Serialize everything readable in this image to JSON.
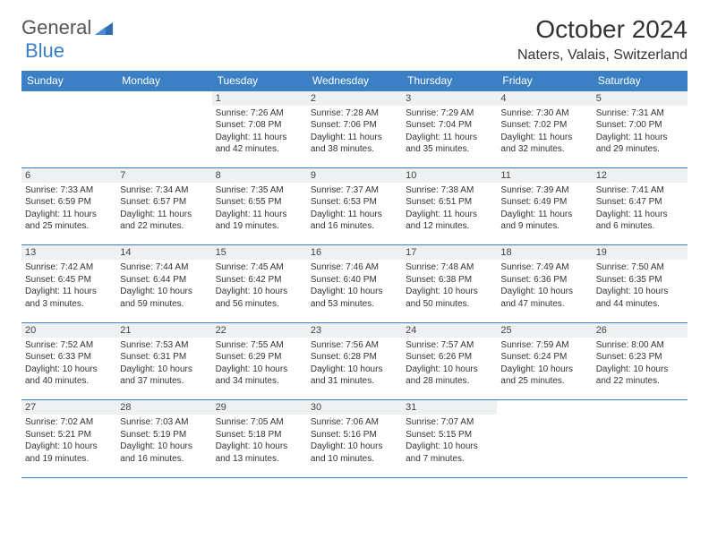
{
  "brand": {
    "part1": "General",
    "part2": "Blue"
  },
  "title": "October 2024",
  "location": "Naters, Valais, Switzerland",
  "header_bg": "#3b7fc4",
  "rule_color": "#3b7fc4",
  "daynum_bg": "#eef0f2",
  "text_color": "#333333",
  "weekdays": [
    "Sunday",
    "Monday",
    "Tuesday",
    "Wednesday",
    "Thursday",
    "Friday",
    "Saturday"
  ],
  "weeks": [
    [
      null,
      null,
      {
        "n": "1",
        "sr": "Sunrise: 7:26 AM",
        "ss": "Sunset: 7:08 PM",
        "dl1": "Daylight: 11 hours",
        "dl2": "and 42 minutes."
      },
      {
        "n": "2",
        "sr": "Sunrise: 7:28 AM",
        "ss": "Sunset: 7:06 PM",
        "dl1": "Daylight: 11 hours",
        "dl2": "and 38 minutes."
      },
      {
        "n": "3",
        "sr": "Sunrise: 7:29 AM",
        "ss": "Sunset: 7:04 PM",
        "dl1": "Daylight: 11 hours",
        "dl2": "and 35 minutes."
      },
      {
        "n": "4",
        "sr": "Sunrise: 7:30 AM",
        "ss": "Sunset: 7:02 PM",
        "dl1": "Daylight: 11 hours",
        "dl2": "and 32 minutes."
      },
      {
        "n": "5",
        "sr": "Sunrise: 7:31 AM",
        "ss": "Sunset: 7:00 PM",
        "dl1": "Daylight: 11 hours",
        "dl2": "and 29 minutes."
      }
    ],
    [
      {
        "n": "6",
        "sr": "Sunrise: 7:33 AM",
        "ss": "Sunset: 6:59 PM",
        "dl1": "Daylight: 11 hours",
        "dl2": "and 25 minutes."
      },
      {
        "n": "7",
        "sr": "Sunrise: 7:34 AM",
        "ss": "Sunset: 6:57 PM",
        "dl1": "Daylight: 11 hours",
        "dl2": "and 22 minutes."
      },
      {
        "n": "8",
        "sr": "Sunrise: 7:35 AM",
        "ss": "Sunset: 6:55 PM",
        "dl1": "Daylight: 11 hours",
        "dl2": "and 19 minutes."
      },
      {
        "n": "9",
        "sr": "Sunrise: 7:37 AM",
        "ss": "Sunset: 6:53 PM",
        "dl1": "Daylight: 11 hours",
        "dl2": "and 16 minutes."
      },
      {
        "n": "10",
        "sr": "Sunrise: 7:38 AM",
        "ss": "Sunset: 6:51 PM",
        "dl1": "Daylight: 11 hours",
        "dl2": "and 12 minutes."
      },
      {
        "n": "11",
        "sr": "Sunrise: 7:39 AM",
        "ss": "Sunset: 6:49 PM",
        "dl1": "Daylight: 11 hours",
        "dl2": "and 9 minutes."
      },
      {
        "n": "12",
        "sr": "Sunrise: 7:41 AM",
        "ss": "Sunset: 6:47 PM",
        "dl1": "Daylight: 11 hours",
        "dl2": "and 6 minutes."
      }
    ],
    [
      {
        "n": "13",
        "sr": "Sunrise: 7:42 AM",
        "ss": "Sunset: 6:45 PM",
        "dl1": "Daylight: 11 hours",
        "dl2": "and 3 minutes."
      },
      {
        "n": "14",
        "sr": "Sunrise: 7:44 AM",
        "ss": "Sunset: 6:44 PM",
        "dl1": "Daylight: 10 hours",
        "dl2": "and 59 minutes."
      },
      {
        "n": "15",
        "sr": "Sunrise: 7:45 AM",
        "ss": "Sunset: 6:42 PM",
        "dl1": "Daylight: 10 hours",
        "dl2": "and 56 minutes."
      },
      {
        "n": "16",
        "sr": "Sunrise: 7:46 AM",
        "ss": "Sunset: 6:40 PM",
        "dl1": "Daylight: 10 hours",
        "dl2": "and 53 minutes."
      },
      {
        "n": "17",
        "sr": "Sunrise: 7:48 AM",
        "ss": "Sunset: 6:38 PM",
        "dl1": "Daylight: 10 hours",
        "dl2": "and 50 minutes."
      },
      {
        "n": "18",
        "sr": "Sunrise: 7:49 AM",
        "ss": "Sunset: 6:36 PM",
        "dl1": "Daylight: 10 hours",
        "dl2": "and 47 minutes."
      },
      {
        "n": "19",
        "sr": "Sunrise: 7:50 AM",
        "ss": "Sunset: 6:35 PM",
        "dl1": "Daylight: 10 hours",
        "dl2": "and 44 minutes."
      }
    ],
    [
      {
        "n": "20",
        "sr": "Sunrise: 7:52 AM",
        "ss": "Sunset: 6:33 PM",
        "dl1": "Daylight: 10 hours",
        "dl2": "and 40 minutes."
      },
      {
        "n": "21",
        "sr": "Sunrise: 7:53 AM",
        "ss": "Sunset: 6:31 PM",
        "dl1": "Daylight: 10 hours",
        "dl2": "and 37 minutes."
      },
      {
        "n": "22",
        "sr": "Sunrise: 7:55 AM",
        "ss": "Sunset: 6:29 PM",
        "dl1": "Daylight: 10 hours",
        "dl2": "and 34 minutes."
      },
      {
        "n": "23",
        "sr": "Sunrise: 7:56 AM",
        "ss": "Sunset: 6:28 PM",
        "dl1": "Daylight: 10 hours",
        "dl2": "and 31 minutes."
      },
      {
        "n": "24",
        "sr": "Sunrise: 7:57 AM",
        "ss": "Sunset: 6:26 PM",
        "dl1": "Daylight: 10 hours",
        "dl2": "and 28 minutes."
      },
      {
        "n": "25",
        "sr": "Sunrise: 7:59 AM",
        "ss": "Sunset: 6:24 PM",
        "dl1": "Daylight: 10 hours",
        "dl2": "and 25 minutes."
      },
      {
        "n": "26",
        "sr": "Sunrise: 8:00 AM",
        "ss": "Sunset: 6:23 PM",
        "dl1": "Daylight: 10 hours",
        "dl2": "and 22 minutes."
      }
    ],
    [
      {
        "n": "27",
        "sr": "Sunrise: 7:02 AM",
        "ss": "Sunset: 5:21 PM",
        "dl1": "Daylight: 10 hours",
        "dl2": "and 19 minutes."
      },
      {
        "n": "28",
        "sr": "Sunrise: 7:03 AM",
        "ss": "Sunset: 5:19 PM",
        "dl1": "Daylight: 10 hours",
        "dl2": "and 16 minutes."
      },
      {
        "n": "29",
        "sr": "Sunrise: 7:05 AM",
        "ss": "Sunset: 5:18 PM",
        "dl1": "Daylight: 10 hours",
        "dl2": "and 13 minutes."
      },
      {
        "n": "30",
        "sr": "Sunrise: 7:06 AM",
        "ss": "Sunset: 5:16 PM",
        "dl1": "Daylight: 10 hours",
        "dl2": "and 10 minutes."
      },
      {
        "n": "31",
        "sr": "Sunrise: 7:07 AM",
        "ss": "Sunset: 5:15 PM",
        "dl1": "Daylight: 10 hours",
        "dl2": "and 7 minutes."
      },
      null,
      null
    ]
  ]
}
